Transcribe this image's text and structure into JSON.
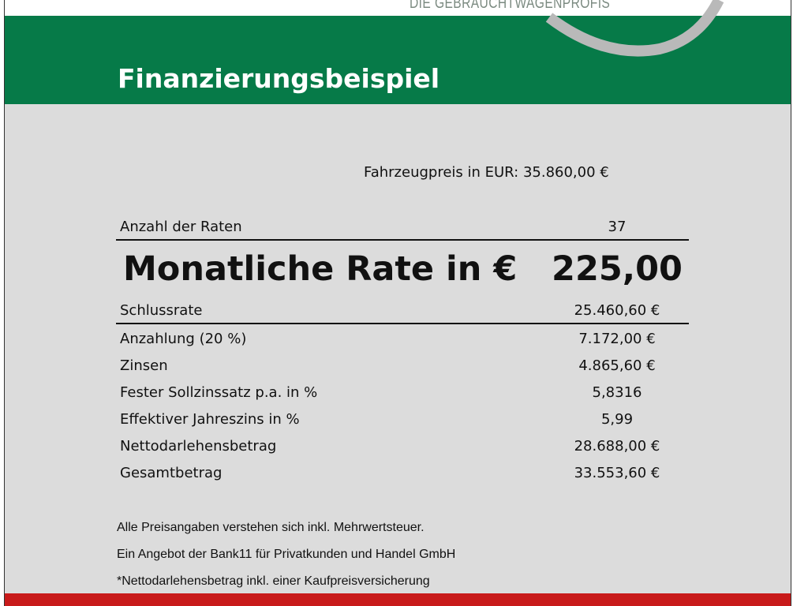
{
  "brand": {
    "tagline": "DIE GEBRAUCHTWAGENPROFIS"
  },
  "colors": {
    "header": "#067a48",
    "footer": "#c81a1a",
    "background": "#dcdcdc"
  },
  "title": "Finanzierungsbeispiel",
  "price": {
    "label": "Fahrzeugpreis in EUR:",
    "value": "35.860,00 €"
  },
  "rows": [
    {
      "label": "Anzahl der Raten",
      "value": "37"
    },
    {
      "label": "Monatliche Rate in €",
      "value": "225,00"
    },
    {
      "label": "Schlussrate",
      "value": "25.460,60 €"
    },
    {
      "label": "Anzahlung (20 %)",
      "value": "7.172,00 €"
    },
    {
      "label": "Zinsen",
      "value": "4.865,60 €"
    },
    {
      "label": "Fester Sollzinssatz p.a. in %",
      "value": "5,8316"
    },
    {
      "label": "Effektiver Jahreszins in %",
      "value": "5,99"
    },
    {
      "label": "Nettodarlehensbetrag",
      "value": "28.688,00 €"
    },
    {
      "label": "Gesamtbetrag",
      "value": "33.553,60 €"
    }
  ],
  "notes": [
    "Alle Preisangaben verstehen sich inkl. Mehrwertsteuer.",
    "Ein Angebot der Bank11 für Privatkunden und Handel GmbH",
    "*Nettodarlehensbetrag inkl. einer Kaufpreisversicherung"
  ]
}
